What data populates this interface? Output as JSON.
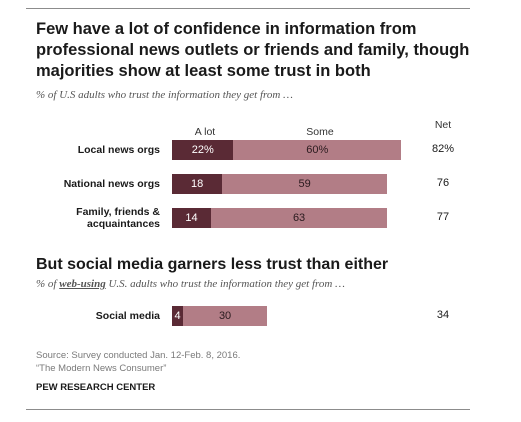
{
  "title": "Few have a lot of confidence in information from professional news outlets or friends and family, though majorities show at least some trust in both",
  "subtitle": "% of U.S adults who trust the information they get from …",
  "section2_title": "But social media garners less trust than either",
  "subtitle2": {
    "prefix": "% of ",
    "highlight": "web-using",
    "suffix": " U.S. adults who trust the information they get from …"
  },
  "columns": {
    "alot": "A lot",
    "some": "Some",
    "net": "Net"
  },
  "colors": {
    "alot": "#5a2a35",
    "some": "#b27d86"
  },
  "chart_data": [
    {
      "type": "bar",
      "orientation": "horizontal",
      "stacked": true,
      "title": "Few have a lot of confidence in information from professional news outlets or friends and family, though majorities show at least some trust in both",
      "subtitle": "% of U.S adults who trust the information they get from …",
      "categories": [
        "Local news orgs",
        "National news orgs",
        "Family, friends & acquaintances"
      ],
      "category_lines": [
        [
          "Local news orgs"
        ],
        [
          "National news orgs"
        ],
        [
          "Family, friends &",
          "acquaintances"
        ]
      ],
      "series": [
        {
          "name": "A lot",
          "values": [
            22,
            18,
            14
          ],
          "labels": [
            "22%",
            "18",
            "14"
          ]
        },
        {
          "name": "Some",
          "values": [
            60,
            59,
            63
          ],
          "labels": [
            "60%",
            "59",
            "63"
          ]
        }
      ],
      "net": {
        "name": "Net",
        "values": [
          82,
          76,
          77
        ],
        "labels": [
          "82%",
          "76",
          "77"
        ]
      },
      "xlim": [
        0,
        100
      ]
    },
    {
      "type": "bar",
      "orientation": "horizontal",
      "stacked": true,
      "title": "But social media garners less trust than either",
      "categories": [
        "Social media"
      ],
      "category_lines": [
        [
          "Social media"
        ]
      ],
      "series": [
        {
          "name": "A lot",
          "values": [
            4
          ],
          "labels": [
            "4"
          ]
        },
        {
          "name": "Some",
          "values": [
            30
          ],
          "labels": [
            "30"
          ]
        }
      ],
      "net": {
        "name": "Net",
        "values": [
          34
        ],
        "labels": [
          "34"
        ]
      },
      "xlim": [
        0,
        100
      ]
    }
  ],
  "source": {
    "line1": "Source: Survey conducted Jan. 12-Feb. 8, 2016.",
    "line2": "“The Modern News Consumer”"
  },
  "organization": "PEW RESEARCH CENTER"
}
